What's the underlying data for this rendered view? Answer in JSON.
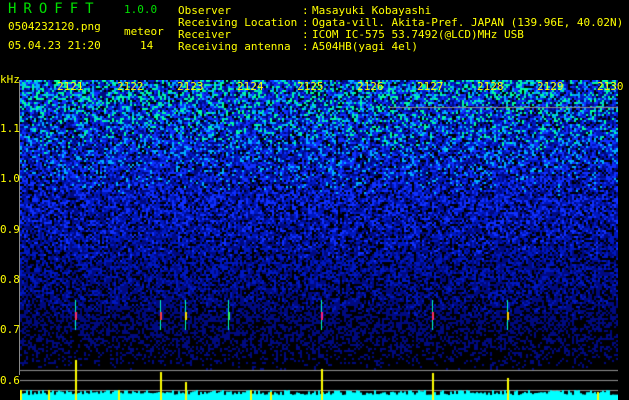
{
  "header": {
    "app": "HROFFT",
    "version": "1.0.0",
    "filename": "0504232120.png",
    "datetime": "05.04.23 21:20",
    "meteor_label": "meteor",
    "meteor_count": "14"
  },
  "info": [
    {
      "label": "Observer",
      "value": "Masayuki Kobayashi"
    },
    {
      "label": "Receiving Location",
      "value": "Ogata-vill. Akita-Pref. JAPAN (139.96E, 40.02N)"
    },
    {
      "label": "Receiver",
      "value": "ICOM IC-575 53.7492(@LCD)MHz USB"
    },
    {
      "label": "Receiving antenna",
      "value": "A504HB(yagi 4el)"
    }
  ],
  "spectrogram": {
    "y_unit": "kHz",
    "y_ticks": [
      "1.1",
      "1.0",
      "0.9",
      "0.8",
      "0.7",
      "0.6"
    ],
    "x_ticks": [
      "2121",
      "2122",
      "2123",
      "2124",
      "2125",
      "2126",
      "2127",
      "2128",
      "2129",
      "2130"
    ],
    "colors": {
      "background": "#000000",
      "noise": "#0000c0",
      "bright": "#00ffff",
      "text": "#ffff00",
      "title": "#00e000",
      "bars": "#00ffff",
      "spikes": "#ffff00"
    }
  }
}
